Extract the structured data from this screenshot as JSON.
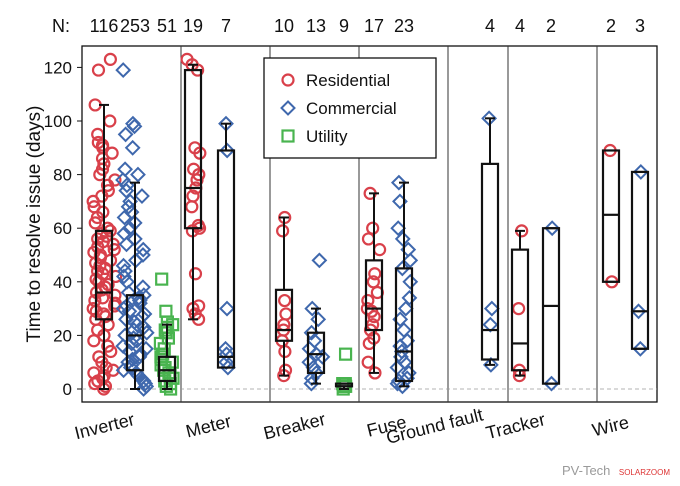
{
  "chart_data": {
    "type": "box",
    "ylabel": "Time to resolve issue (days)",
    "ylim": [
      -5,
      128
    ],
    "yticks": [
      0,
      20,
      40,
      60,
      80,
      100,
      120
    ],
    "n_label": "N:",
    "grid": false,
    "legend_position": "top-center",
    "categories": [
      "Inverter",
      "Meter",
      "Breaker",
      "Fuse",
      "Ground fault",
      "Tracker",
      "Wire"
    ],
    "series": [
      {
        "name": "Residential",
        "marker": "circle",
        "color": "#d9404a"
      },
      {
        "name": "Commercial",
        "marker": "diamond",
        "color": "#3f68ad"
      },
      {
        "name": "Utility",
        "marker": "square",
        "color": "#49b44f"
      }
    ],
    "groups": [
      {
        "category": "Inverter",
        "boxes": [
          {
            "series": "Residential",
            "n": "116",
            "min": 0,
            "q1": 26,
            "median": 36,
            "q3": 59,
            "max": 106,
            "points": [
              0,
              1,
              2,
              3,
              4,
              5,
              6,
              7,
              8,
              10,
              12,
              14,
              16,
              18,
              20,
              22,
              24,
              26,
              27,
              28,
              29,
              30,
              31,
              32,
              33,
              34,
              35,
              36,
              37,
              38,
              39,
              40,
              41,
              42,
              43,
              44,
              45,
              46,
              47,
              48,
              49,
              50,
              51,
              52,
              53,
              54,
              55,
              56,
              57,
              58,
              59,
              60,
              62,
              64,
              66,
              68,
              70,
              72,
              74,
              76,
              78,
              80,
              82,
              84,
              86,
              88,
              90,
              91,
              92,
              95,
              100,
              106,
              119,
              123
            ]
          },
          {
            "series": "Commercial",
            "n": "253",
            "min": 0,
            "q1": 7,
            "median": 20,
            "q3": 35,
            "max": 77,
            "points": [
              0,
              1,
              2,
              3,
              4,
              5,
              6,
              7,
              8,
              9,
              10,
              11,
              12,
              13,
              14,
              15,
              16,
              17,
              18,
              19,
              20,
              21,
              22,
              23,
              24,
              25,
              26,
              27,
              28,
              29,
              30,
              31,
              32,
              33,
              34,
              35,
              36,
              38,
              40,
              42,
              44,
              46,
              48,
              50,
              52,
              54,
              56,
              58,
              60,
              62,
              64,
              66,
              68,
              70,
              72,
              74,
              76,
              78,
              80,
              82,
              90,
              95,
              98,
              99,
              119
            ]
          },
          {
            "series": "Utility",
            "n": "51",
            "min": 0,
            "q1": 3,
            "median": 7,
            "q3": 12,
            "max": 24,
            "points": [
              0,
              1,
              2,
              3,
              4,
              5,
              6,
              7,
              8,
              9,
              10,
              11,
              12,
              13,
              15,
              17,
              19,
              21,
              22,
              23,
              24,
              25,
              29,
              41
            ]
          }
        ]
      },
      {
        "category": "Meter",
        "boxes": [
          {
            "series": "Residential",
            "n": "19",
            "min": 26,
            "q1": 60,
            "median": 75,
            "q3": 119,
            "max": 121,
            "points": [
              26,
              28,
              30,
              31,
              43,
              59,
              60,
              61,
              68,
              72,
              75,
              78,
              80,
              82,
              88,
              90,
              119,
              121,
              123
            ]
          },
          {
            "series": "Commercial",
            "n": "7",
            "min": 8,
            "q1": 8,
            "median": 12,
            "q3": 89,
            "max": 99,
            "points": [
              8,
              10,
              13,
              15,
              30,
              89,
              99
            ]
          }
        ]
      },
      {
        "category": "Breaker",
        "boxes": [
          {
            "series": "Residential",
            "n": "10",
            "min": 5,
            "q1": 18,
            "median": 22,
            "q3": 37,
            "max": 64,
            "points": [
              5,
              7,
              14,
              18,
              22,
              24,
              28,
              33,
              59,
              64
            ]
          },
          {
            "series": "Commercial",
            "n": "13",
            "min": 2,
            "q1": 6,
            "median": 13,
            "q3": 21,
            "max": 30,
            "points": [
              2,
              4,
              6,
              8,
              10,
              12,
              13,
              15,
              18,
              21,
              26,
              30,
              48
            ]
          },
          {
            "series": "Utility",
            "n": "9",
            "min": 0,
            "q1": 1,
            "median": 1,
            "q3": 2,
            "max": 2,
            "points": [
              0,
              1,
              1,
              1,
              2,
              2,
              2,
              2,
              13
            ]
          }
        ]
      },
      {
        "category": "Fuse",
        "boxes": [
          {
            "series": "Residential",
            "n": "17",
            "min": 6,
            "q1": 22,
            "median": 30,
            "q3": 48,
            "max": 73,
            "points": [
              6,
              10,
              17,
              19,
              22,
              24,
              27,
              29,
              30,
              33,
              36,
              40,
              43,
              52,
              56,
              60,
              73
            ]
          },
          {
            "series": "Commercial",
            "n": "23",
            "min": 1,
            "q1": 3,
            "median": 14,
            "q3": 45,
            "max": 77,
            "points": [
              1,
              2,
              3,
              4,
              6,
              8,
              10,
              12,
              14,
              16,
              18,
              22,
              26,
              30,
              34,
              40,
              45,
              48,
              52,
              56,
              60,
              70,
              77
            ]
          }
        ]
      },
      {
        "category": "Ground fault",
        "boxes": [
          {
            "series": "Commercial",
            "n": "4",
            "min": 9,
            "q1": 11,
            "median": 22,
            "q3": 84,
            "max": 101,
            "points": [
              9,
              24,
              30,
              101
            ]
          }
        ]
      },
      {
        "category": "Tracker",
        "boxes": [
          {
            "series": "Residential",
            "n": "4",
            "min": 5,
            "q1": 7,
            "median": 17,
            "q3": 52,
            "max": 59,
            "points": [
              5,
              7,
              30,
              59
            ]
          },
          {
            "series": "Commercial",
            "n": "2",
            "min": 2,
            "q1": 2,
            "median": 31,
            "q3": 60,
            "max": 60,
            "points": [
              2,
              60
            ]
          }
        ]
      },
      {
        "category": "Wire",
        "boxes": [
          {
            "series": "Residential",
            "n": "2",
            "min": 40,
            "q1": 40,
            "median": 65,
            "q3": 89,
            "max": 89,
            "points": [
              40,
              89
            ]
          },
          {
            "series": "Commercial",
            "n": "3",
            "min": 15,
            "q1": 15,
            "median": 29,
            "q3": 81,
            "max": 81,
            "points": [
              15,
              29,
              81
            ]
          }
        ]
      }
    ]
  },
  "watermark": {
    "main": "PV-Tech",
    "sub": "SOLARZOOM"
  }
}
